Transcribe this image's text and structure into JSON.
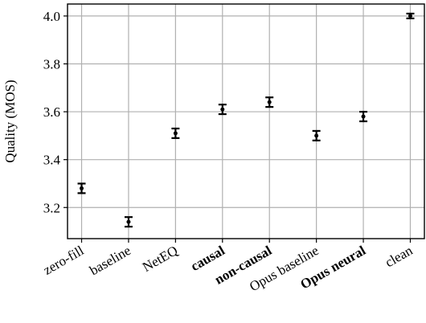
{
  "chart_data": {
    "type": "errorbar",
    "y_label": "Quality (MOS)",
    "categories": [
      "zero-fill",
      "baseline",
      "NetEQ",
      "causal",
      "non-causal",
      "Opus baseline",
      "Opus neural",
      "clean"
    ],
    "category_bold": [
      false,
      false,
      false,
      true,
      true,
      false,
      true,
      false
    ],
    "values": [
      3.28,
      3.14,
      3.51,
      3.61,
      3.64,
      3.5,
      3.58,
      4.0
    ],
    "errors": [
      0.02,
      0.02,
      0.02,
      0.02,
      0.02,
      0.02,
      0.02,
      0.01
    ],
    "color": "#000000",
    "ylim": [
      3.07,
      4.05
    ],
    "yticks": [
      3.2,
      3.4,
      3.6,
      3.8,
      {
        "value": 4.0,
        "label": "4.0"
      }
    ],
    "grid": true
  }
}
